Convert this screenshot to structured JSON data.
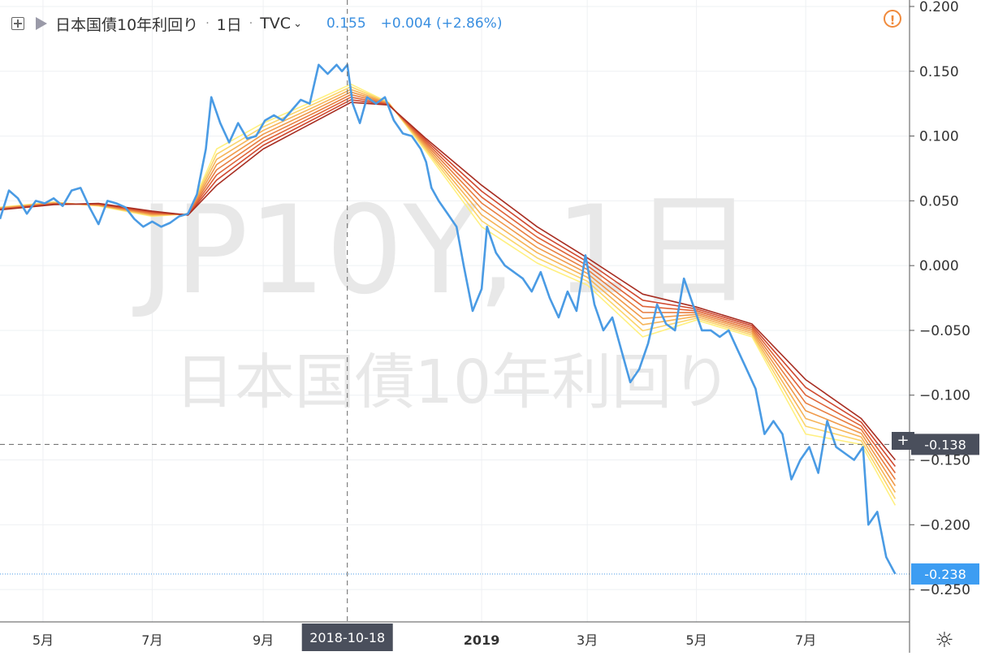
{
  "legend": {
    "symbol_name": "日本国債10年利回り",
    "interval": "1日",
    "source": "TVC",
    "price": "0.155",
    "change": "+0.004 (+2.86%)",
    "price_color": "#3a8fe0"
  },
  "watermark": {
    "symbol": "JP10Y, 1日",
    "name": "日本国債10年利回り"
  },
  "icons": {
    "add": "plus-square-icon",
    "flag": "flag-icon",
    "warning": "warning-icon",
    "settings": "gear-icon",
    "crosshair": "crosshair-icon"
  },
  "crosshair": {
    "date_label": "2018-10-18",
    "price_label": "-0.138",
    "plus": "+"
  },
  "last_price_label": "-0.238",
  "settings_glyph": "☼",
  "chart_data": {
    "type": "line",
    "title": "",
    "xlabel": "",
    "ylabel": "",
    "ylim": [
      -0.275,
      0.205
    ],
    "y_ticks": [
      "0.200",
      "0.150",
      "0.100",
      "0.050",
      "0.000",
      "−0.050",
      "−0.100",
      "−0.150",
      "−0.200",
      "−0.250"
    ],
    "y_tick_values": [
      0.2,
      0.15,
      0.1,
      0.05,
      0.0,
      -0.05,
      -0.1,
      -0.15,
      -0.2,
      -0.25
    ],
    "x_tick_labels": [
      {
        "date": "2018-05-01",
        "label": "5月"
      },
      {
        "date": "2018-07-01",
        "label": "7月"
      },
      {
        "date": "2018-09-01",
        "label": "9月"
      },
      {
        "date": "2019-01-01",
        "label": "2019"
      },
      {
        "date": "2019-03-01",
        "label": "3月"
      },
      {
        "date": "2019-05-01",
        "label": "5月"
      },
      {
        "date": "2019-07-01",
        "label": "7月"
      }
    ],
    "xlim": [
      "2018-04-07",
      "2019-08-28"
    ],
    "last_value": -0.238,
    "crosshair_value": -0.138,
    "crosshair_date": "2018-10-18",
    "series": [
      {
        "color": "#4a9be4",
        "points": [
          [
            "2018-04-07",
            0.036
          ],
          [
            "2018-04-12",
            0.058
          ],
          [
            "2018-04-17",
            0.052
          ],
          [
            "2018-04-22",
            0.04
          ],
          [
            "2018-04-27",
            0.05
          ],
          [
            "2018-05-02",
            0.048
          ],
          [
            "2018-05-07",
            0.052
          ],
          [
            "2018-05-12",
            0.046
          ],
          [
            "2018-05-17",
            0.058
          ],
          [
            "2018-05-22",
            0.06
          ],
          [
            "2018-05-27",
            0.045
          ],
          [
            "2018-06-01",
            0.032
          ],
          [
            "2018-06-06",
            0.05
          ],
          [
            "2018-06-11",
            0.048
          ],
          [
            "2018-06-16",
            0.045
          ],
          [
            "2018-06-21",
            0.036
          ],
          [
            "2018-06-26",
            0.03
          ],
          [
            "2018-07-01",
            0.034
          ],
          [
            "2018-07-06",
            0.03
          ],
          [
            "2018-07-11",
            0.033
          ],
          [
            "2018-07-16",
            0.038
          ],
          [
            "2018-07-21",
            0.04
          ],
          [
            "2018-07-26",
            0.055
          ],
          [
            "2018-07-31",
            0.09
          ],
          [
            "2018-08-03",
            0.13
          ],
          [
            "2018-08-08",
            0.11
          ],
          [
            "2018-08-13",
            0.095
          ],
          [
            "2018-08-18",
            0.11
          ],
          [
            "2018-08-23",
            0.098
          ],
          [
            "2018-08-28",
            0.1
          ],
          [
            "2018-09-02",
            0.112
          ],
          [
            "2018-09-07",
            0.116
          ],
          [
            "2018-09-12",
            0.112
          ],
          [
            "2018-09-17",
            0.12
          ],
          [
            "2018-09-22",
            0.128
          ],
          [
            "2018-09-27",
            0.125
          ],
          [
            "2018-10-02",
            0.155
          ],
          [
            "2018-10-07",
            0.148
          ],
          [
            "2018-10-12",
            0.155
          ],
          [
            "2018-10-15",
            0.15
          ],
          [
            "2018-10-18",
            0.155
          ],
          [
            "2018-10-21",
            0.125
          ],
          [
            "2018-10-25",
            0.11
          ],
          [
            "2018-10-29",
            0.13
          ],
          [
            "2018-11-03",
            0.125
          ],
          [
            "2018-11-08",
            0.13
          ],
          [
            "2018-11-13",
            0.112
          ],
          [
            "2018-11-18",
            0.102
          ],
          [
            "2018-11-23",
            0.1
          ],
          [
            "2018-11-28",
            0.09
          ],
          [
            "2018-12-01",
            0.08
          ],
          [
            "2018-12-04",
            0.06
          ],
          [
            "2018-12-08",
            0.05
          ],
          [
            "2018-12-13",
            0.04
          ],
          [
            "2018-12-18",
            0.03
          ],
          [
            "2018-12-22",
            0.0
          ],
          [
            "2018-12-27",
            -0.035
          ],
          [
            "2019-01-01",
            -0.018
          ],
          [
            "2019-01-04",
            0.03
          ],
          [
            "2019-01-09",
            0.01
          ],
          [
            "2019-01-14",
            0.0
          ],
          [
            "2019-01-19",
            -0.005
          ],
          [
            "2019-01-24",
            -0.01
          ],
          [
            "2019-01-29",
            -0.02
          ],
          [
            "2019-02-03",
            -0.005
          ],
          [
            "2019-02-08",
            -0.025
          ],
          [
            "2019-02-13",
            -0.04
          ],
          [
            "2019-02-18",
            -0.02
          ],
          [
            "2019-02-23",
            -0.035
          ],
          [
            "2019-02-28",
            0.008
          ],
          [
            "2019-03-05",
            -0.03
          ],
          [
            "2019-03-10",
            -0.05
          ],
          [
            "2019-03-15",
            -0.04
          ],
          [
            "2019-03-20",
            -0.065
          ],
          [
            "2019-03-25",
            -0.09
          ],
          [
            "2019-03-30",
            -0.08
          ],
          [
            "2019-04-04",
            -0.06
          ],
          [
            "2019-04-09",
            -0.03
          ],
          [
            "2019-04-14",
            -0.045
          ],
          [
            "2019-04-19",
            -0.05
          ],
          [
            "2019-04-24",
            -0.01
          ],
          [
            "2019-04-29",
            -0.03
          ],
          [
            "2019-05-04",
            -0.05
          ],
          [
            "2019-05-09",
            -0.05
          ],
          [
            "2019-05-14",
            -0.055
          ],
          [
            "2019-05-19",
            -0.05
          ],
          [
            "2019-05-24",
            -0.065
          ],
          [
            "2019-05-29",
            -0.08
          ],
          [
            "2019-06-03",
            -0.095
          ],
          [
            "2019-06-08",
            -0.13
          ],
          [
            "2019-06-13",
            -0.12
          ],
          [
            "2019-06-18",
            -0.13
          ],
          [
            "2019-06-23",
            -0.165
          ],
          [
            "2019-06-28",
            -0.15
          ],
          [
            "2019-07-03",
            -0.14
          ],
          [
            "2019-07-08",
            -0.16
          ],
          [
            "2019-07-13",
            -0.12
          ],
          [
            "2019-07-18",
            -0.14
          ],
          [
            "2019-07-23",
            -0.145
          ],
          [
            "2019-07-28",
            -0.15
          ],
          [
            "2019-08-02",
            -0.14
          ],
          [
            "2019-08-05",
            -0.2
          ],
          [
            "2019-08-10",
            -0.19
          ],
          [
            "2019-08-15",
            -0.225
          ],
          [
            "2019-08-20",
            -0.238
          ]
        ]
      }
    ],
    "ribbon": {
      "colors": [
        "#fff080",
        "#fbd46a",
        "#f6b458",
        "#f09a4a",
        "#e87e40",
        "#df6438",
        "#d04a30",
        "#a82e22"
      ],
      "base": [
        [
          "2018-04-07",
          0.043
        ],
        [
          "2018-05-07",
          0.047
        ],
        [
          "2018-06-01",
          0.048
        ],
        [
          "2018-07-01",
          0.042
        ],
        [
          "2018-07-21",
          0.039
        ],
        [
          "2018-08-06",
          0.062
        ],
        [
          "2018-09-01",
          0.09
        ],
        [
          "2018-10-01",
          0.112
        ],
        [
          "2018-10-20",
          0.126
        ],
        [
          "2018-11-10",
          0.124
        ],
        [
          "2018-12-01",
          0.098
        ],
        [
          "2019-01-01",
          0.062
        ],
        [
          "2019-02-01",
          0.03
        ],
        [
          "2019-03-01",
          0.006
        ],
        [
          "2019-04-01",
          -0.022
        ],
        [
          "2019-05-01",
          -0.032
        ],
        [
          "2019-06-01",
          -0.045
        ],
        [
          "2019-07-01",
          -0.088
        ],
        [
          "2019-08-01",
          -0.118
        ],
        [
          "2019-08-20",
          -0.15
        ]
      ],
      "inner": [
        [
          "2018-04-07",
          0.045
        ],
        [
          "2018-05-07",
          0.049
        ],
        [
          "2018-06-01",
          0.046
        ],
        [
          "2018-07-01",
          0.038
        ],
        [
          "2018-07-21",
          0.04
        ],
        [
          "2018-08-06",
          0.09
        ],
        [
          "2018-09-01",
          0.11
        ],
        [
          "2018-10-01",
          0.128
        ],
        [
          "2018-10-20",
          0.14
        ],
        [
          "2018-11-10",
          0.126
        ],
        [
          "2018-12-01",
          0.088
        ],
        [
          "2019-01-01",
          0.03
        ],
        [
          "2019-02-01",
          0.002
        ],
        [
          "2019-03-01",
          -0.015
        ],
        [
          "2019-04-01",
          -0.055
        ],
        [
          "2019-05-01",
          -0.042
        ],
        [
          "2019-06-01",
          -0.055
        ],
        [
          "2019-07-01",
          -0.13
        ],
        [
          "2019-08-01",
          -0.138
        ],
        [
          "2019-08-20",
          -0.185
        ]
      ]
    }
  }
}
